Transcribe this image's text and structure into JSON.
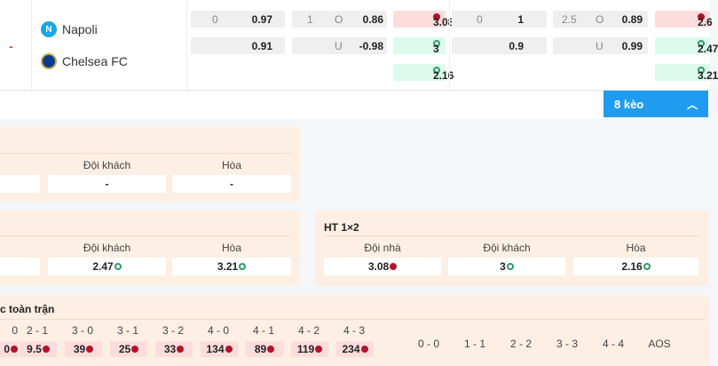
{
  "match": {
    "status": "-",
    "home": "Napoli",
    "away": "Chelsea FC"
  },
  "odds": {
    "ft_handicap": {
      "line": "0",
      "home": "0.97",
      "away": "0.91"
    },
    "ft_ou": {
      "line": "1",
      "over_label": "O",
      "under_label": "U",
      "over": "0.86",
      "under": "-0.98"
    },
    "ht_1x2": {
      "home": "3.08",
      "away": "3",
      "draw": "2.16"
    },
    "ft_handicap2": {
      "line": "0",
      "home": "1",
      "away": "0.9"
    },
    "ft_ou2": {
      "line": "2.5",
      "over_label": "O",
      "under_label": "U",
      "over": "0.89",
      "under": "0.99"
    },
    "ft_1x2": {
      "home": "2.6",
      "away": "2.47",
      "draw": "3.21"
    }
  },
  "more_button": {
    "label": "8 kèo"
  },
  "panel1": {
    "away_label": "Đội khách",
    "draw_label": "Hòa",
    "away": "-",
    "draw": "-"
  },
  "panel2": {
    "away_label": "Đội khách",
    "draw_label": "Hòa",
    "away": "2.47",
    "draw": "3.21"
  },
  "panel3": {
    "title": "HT 1×2",
    "home_label": "Đội nhà",
    "away_label": "Đội khách",
    "draw_label": "Hòa",
    "home": "3.08",
    "away": "3",
    "draw": "2.16"
  },
  "scores": {
    "title": "c toàn trận",
    "home_wins": [
      {
        "s": "0",
        "v": "0"
      },
      {
        "s": "2 - 1",
        "v": "9.5"
      },
      {
        "s": "3 - 0",
        "v": "39"
      },
      {
        "s": "3 - 1",
        "v": "25"
      },
      {
        "s": "3 - 2",
        "v": "33"
      },
      {
        "s": "4 - 0",
        "v": "134"
      },
      {
        "s": "4 - 1",
        "v": "89"
      },
      {
        "s": "4 - 2",
        "v": "119"
      },
      {
        "s": "4 - 3",
        "v": "234"
      }
    ],
    "draws": [
      "0 - 0",
      "1 - 1",
      "2 - 2",
      "3 - 3",
      "4 - 4",
      "AOS"
    ]
  },
  "colors": {
    "accent": "#1f9cf0",
    "down": "#b3132b",
    "up": "#2e9a62",
    "panel": "#fdefe3"
  }
}
